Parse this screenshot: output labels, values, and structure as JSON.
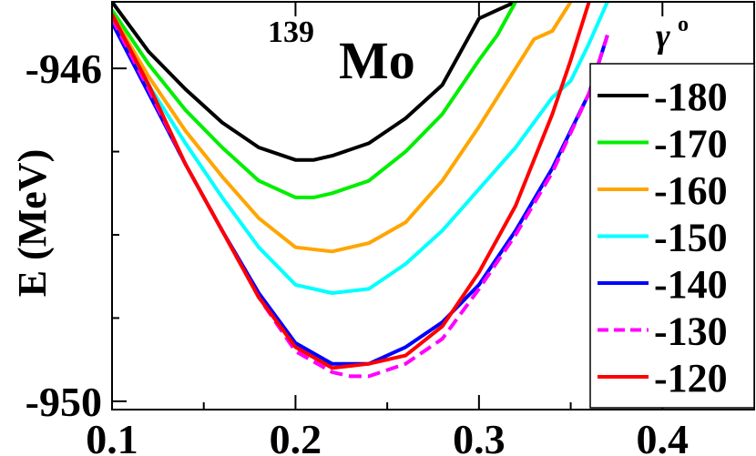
{
  "chart_data": {
    "type": "line",
    "title": "Mo",
    "title_superscript": "139",
    "xlabel": "",
    "ylabel": "E (MeV)",
    "xlim": [
      0.1,
      0.45
    ],
    "ylim": [
      -950.1,
      -945.2
    ],
    "x_ticks": [
      0.1,
      0.2,
      0.3,
      0.4
    ],
    "x_tick_labels": [
      "0.1",
      "0.2",
      "0.3",
      "0.4"
    ],
    "y_ticks": [
      -946,
      -950
    ],
    "y_tick_labels": [
      "-946",
      "-950"
    ],
    "legend_title": "γ",
    "legend_title_superscript": "o",
    "legend_position": "right",
    "series": [
      {
        "name": "-180",
        "color": "#000000",
        "dash": false,
        "x": [
          0.1,
          0.12,
          0.14,
          0.16,
          0.18,
          0.2,
          0.21,
          0.22,
          0.24,
          0.26,
          0.28,
          0.3,
          0.31,
          0.32
        ],
        "y": [
          -945.2,
          -945.8,
          -946.25,
          -946.65,
          -946.95,
          -947.1,
          -947.1,
          -947.05,
          -946.9,
          -946.6,
          -946.2,
          -945.4,
          -945.3,
          -945.2
        ]
      },
      {
        "name": "-170",
        "color": "#00ee00",
        "dash": false,
        "x": [
          0.1,
          0.12,
          0.14,
          0.16,
          0.18,
          0.2,
          0.21,
          0.22,
          0.24,
          0.26,
          0.28,
          0.3,
          0.31,
          0.32
        ],
        "y": [
          -945.3,
          -945.95,
          -946.5,
          -946.95,
          -947.35,
          -947.55,
          -947.55,
          -947.5,
          -947.35,
          -947.0,
          -946.55,
          -945.9,
          -945.6,
          -945.2
        ]
      },
      {
        "name": "-160",
        "color": "#ffa500",
        "dash": false,
        "x": [
          0.1,
          0.12,
          0.14,
          0.16,
          0.18,
          0.2,
          0.22,
          0.24,
          0.26,
          0.28,
          0.3,
          0.32,
          0.33,
          0.34,
          0.35
        ],
        "y": [
          -945.35,
          -946.1,
          -946.75,
          -947.3,
          -947.8,
          -948.15,
          -948.2,
          -948.1,
          -947.85,
          -947.35,
          -946.7,
          -946.0,
          -945.65,
          -945.55,
          -945.2
        ]
      },
      {
        "name": "-150",
        "color": "#00ffff",
        "dash": false,
        "x": [
          0.1,
          0.12,
          0.14,
          0.16,
          0.18,
          0.2,
          0.22,
          0.24,
          0.26,
          0.28,
          0.3,
          0.32,
          0.34,
          0.35,
          0.36,
          0.37
        ],
        "y": [
          -945.4,
          -946.2,
          -946.9,
          -947.55,
          -948.15,
          -948.6,
          -948.7,
          -948.65,
          -948.35,
          -947.95,
          -947.45,
          -946.95,
          -946.35,
          -946.15,
          -945.7,
          -945.2
        ]
      },
      {
        "name": "-140",
        "color": "#0000ff",
        "dash": false,
        "x": [
          0.1,
          0.12,
          0.14,
          0.16,
          0.18,
          0.2,
          0.22,
          0.24,
          0.26,
          0.28,
          0.3,
          0.32,
          0.34,
          0.36,
          0.37
        ],
        "y": [
          -945.45,
          -946.3,
          -947.15,
          -947.95,
          -948.7,
          -949.3,
          -949.55,
          -949.55,
          -949.35,
          -949.05,
          -948.6,
          -947.95,
          -947.2,
          -946.3,
          -945.6
        ]
      },
      {
        "name": "-130",
        "color": "#ff00ff",
        "dash": true,
        "x": [
          0.1,
          0.12,
          0.14,
          0.16,
          0.18,
          0.2,
          0.22,
          0.23,
          0.24,
          0.26,
          0.28,
          0.3,
          0.32,
          0.34,
          0.36,
          0.37
        ],
        "y": [
          -945.4,
          -946.25,
          -947.15,
          -947.95,
          -948.75,
          -949.4,
          -949.65,
          -949.7,
          -949.7,
          -949.55,
          -949.25,
          -948.65,
          -948.0,
          -947.25,
          -946.3,
          -945.6
        ]
      },
      {
        "name": "-120",
        "color": "#ff0000",
        "dash": false,
        "x": [
          0.1,
          0.12,
          0.14,
          0.16,
          0.18,
          0.2,
          0.22,
          0.24,
          0.26,
          0.28,
          0.3,
          0.32,
          0.34,
          0.35,
          0.36
        ],
        "y": [
          -945.35,
          -946.2,
          -947.15,
          -947.95,
          -948.75,
          -949.35,
          -949.6,
          -949.55,
          -949.45,
          -949.1,
          -948.45,
          -947.65,
          -946.55,
          -945.9,
          -945.2
        ]
      }
    ]
  }
}
